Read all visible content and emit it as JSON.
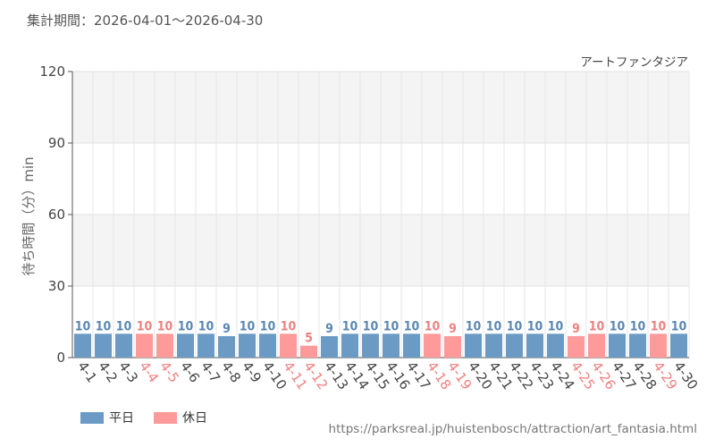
{
  "header": {
    "period_label": "集計期間：2026-04-01～2026-04-30"
  },
  "legend": {
    "weekday_label": "平日",
    "holiday_label": "休日"
  },
  "colors": {
    "weekday": "#6b9bc4",
    "holiday": "#ff9a9a",
    "weekday_text": "#5a87b3",
    "holiday_text": "#f08080",
    "band": "#f4f4f4"
  },
  "footer": {
    "source_url": "https://parksreal.jp/huistenbosch/attraction/art_fantasia.html"
  },
  "chart_data": {
    "type": "bar",
    "title": "アートファンタジア",
    "ylabel": "待ち時間（分）min",
    "xlabel": "",
    "ylim": [
      0,
      120
    ],
    "yticks": [
      0,
      30,
      60,
      90,
      120
    ],
    "grid": true,
    "legend_position": "bottom-left",
    "categories": [
      "4-1",
      "4-2",
      "4-3",
      "4-4",
      "4-5",
      "4-6",
      "4-7",
      "4-8",
      "4-9",
      "4-10",
      "4-11",
      "4-12",
      "4-13",
      "4-14",
      "4-15",
      "4-16",
      "4-17",
      "4-18",
      "4-19",
      "4-20",
      "4-21",
      "4-22",
      "4-23",
      "4-24",
      "4-25",
      "4-26",
      "4-27",
      "4-28",
      "4-29",
      "4-30"
    ],
    "values": [
      10,
      10,
      10,
      10,
      10,
      10,
      10,
      9,
      10,
      10,
      10,
      5,
      9,
      10,
      10,
      10,
      10,
      10,
      9,
      10,
      10,
      10,
      10,
      10,
      9,
      10,
      10,
      10,
      10,
      10
    ],
    "day_type": [
      "weekday",
      "weekday",
      "weekday",
      "holiday",
      "holiday",
      "weekday",
      "weekday",
      "weekday",
      "weekday",
      "weekday",
      "holiday",
      "holiday",
      "weekday",
      "weekday",
      "weekday",
      "weekday",
      "weekday",
      "holiday",
      "holiday",
      "weekday",
      "weekday",
      "weekday",
      "weekday",
      "weekday",
      "holiday",
      "holiday",
      "weekday",
      "weekday",
      "holiday",
      "weekday"
    ]
  }
}
